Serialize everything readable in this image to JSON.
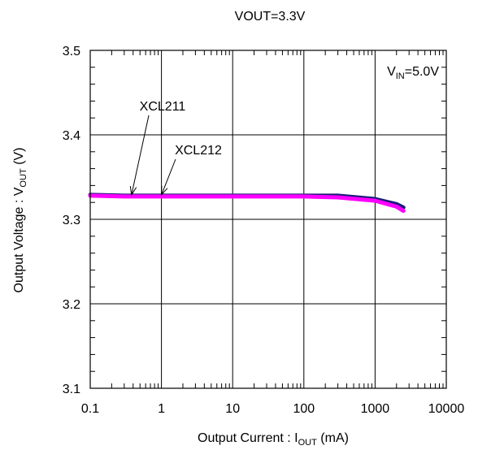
{
  "chart_data": {
    "type": "line",
    "title": "VOUT=3.3V",
    "xlabel": {
      "main": "Output Current : I",
      "sub": "OUT",
      "unit": "  (mA)"
    },
    "ylabel": {
      "main": "Output Voltage : V",
      "sub": "OUT",
      "unit": " (V)"
    },
    "x_scale": "log",
    "xlim": [
      0.1,
      10000
    ],
    "ylim": [
      3.1,
      3.5
    ],
    "x_ticks": [
      0.1,
      1,
      10,
      100,
      1000,
      10000
    ],
    "x_tick_labels": [
      "0.1",
      "1",
      "10",
      "100",
      "1000",
      "10000"
    ],
    "y_ticks": [
      3.1,
      3.2,
      3.3,
      3.4,
      3.5
    ],
    "y_tick_labels": [
      "3.1",
      "3.2",
      "3.3",
      "3.4",
      "3.5"
    ],
    "grid": true,
    "annotation": {
      "main": "V",
      "sub": "IN",
      "rest": "=5.0V"
    },
    "series": [
      {
        "name": "XCL211",
        "color": "#1a1a7a",
        "x": [
          0.1,
          0.3,
          1,
          10,
          100,
          300,
          1000,
          2000,
          2500
        ],
        "y": [
          3.329,
          3.328,
          3.328,
          3.328,
          3.328,
          3.328,
          3.324,
          3.318,
          3.314
        ]
      },
      {
        "name": "XCL212",
        "color": "#ff00ff",
        "x": [
          0.1,
          0.3,
          1,
          10,
          100,
          300,
          1000,
          2000,
          2500
        ],
        "y": [
          3.328,
          3.327,
          3.327,
          3.327,
          3.327,
          3.326,
          3.322,
          3.315,
          3.31
        ]
      }
    ],
    "labels": [
      {
        "text": "XCL211",
        "target": [
          0.38,
          3.327
        ]
      },
      {
        "text": "XCL212",
        "target": [
          1.0,
          3.327
        ]
      }
    ]
  }
}
